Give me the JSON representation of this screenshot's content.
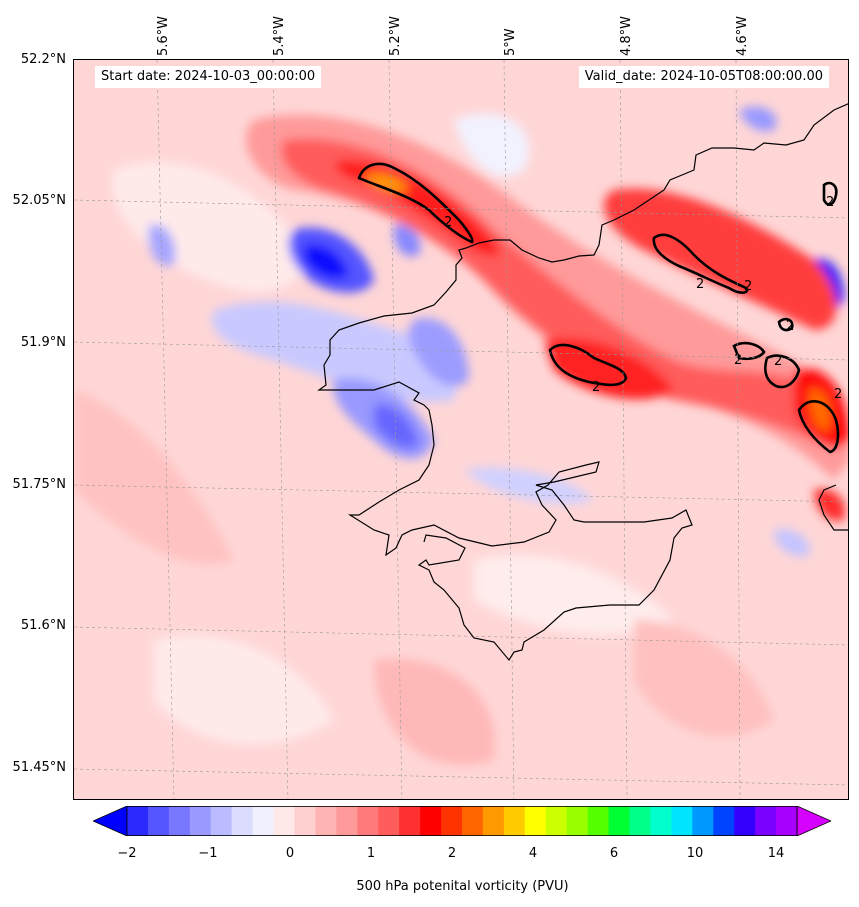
{
  "header": {
    "start_date": "Start date: 2024-10-03_00:00:00",
    "valid_date": "Valid_date: 2024-10-05T08:00:00.00"
  },
  "axes": {
    "lon_labels": [
      "5.6°W",
      "5.4°W",
      "5.2°W",
      "5°W",
      "4.8°W",
      "4.6°W"
    ],
    "lat_labels": [
      "52.2°N",
      "52.05°N",
      "51.9°N",
      "51.75°N",
      "51.6°N",
      "51.45°N"
    ]
  },
  "field": {
    "variable": "500 hPa potenital vorticity (PVU)",
    "contour_level_label": "2",
    "background_color": "#ffd6d6"
  },
  "colorbar": {
    "ticks": [
      "−2",
      "−1",
      "0",
      "1",
      "2",
      "4",
      "6",
      "10",
      "14"
    ],
    "colors": [
      "#0000ff",
      "#2a2aff",
      "#5555ff",
      "#7777ff",
      "#9999ff",
      "#bbbbff",
      "#dcdcff",
      "#f0f0ff",
      "#ffe8e8",
      "#ffd0d0",
      "#ffb4b4",
      "#ff9a9a",
      "#ff7a7a",
      "#ff5c5c",
      "#ff3030",
      "#ff0000",
      "#ff3300",
      "#ff6600",
      "#ff9900",
      "#ffcc00",
      "#ffff00",
      "#ccff00",
      "#99ff00",
      "#55ff00",
      "#00ff33",
      "#00ff88",
      "#00ffcc",
      "#00e5ff",
      "#0099ff",
      "#0044ff",
      "#3300ff",
      "#7a00ff",
      "#a800ff",
      "#d600ff"
    ],
    "label": "500 hPa potenital vorticity (PVU)"
  }
}
